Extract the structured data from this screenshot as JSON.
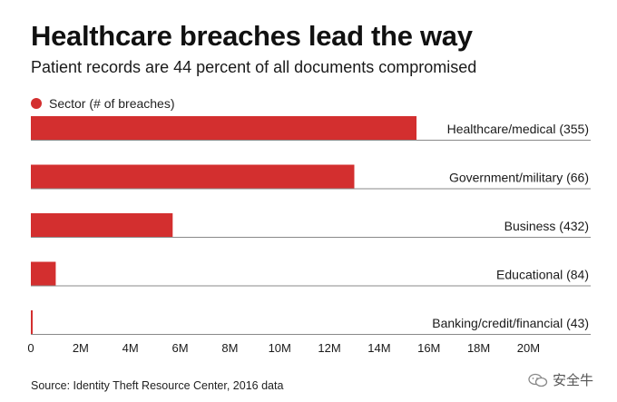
{
  "header": {
    "title": "Healthcare breaches lead the way",
    "subtitle": "Patient records are 44 percent of all documents compromised"
  },
  "legend": {
    "label": "Sector (# of breaches)",
    "color": "#d32f2f"
  },
  "chart_data": {
    "type": "bar",
    "orientation": "horizontal",
    "categories": [
      "Healthcare/medical (355)",
      "Government/military (66)",
      "Business (432)",
      "Educational (84)",
      "Banking/credit/financial (43)"
    ],
    "series": [
      {
        "name": "Sector (# of breaches)",
        "values": [
          15500000,
          13000000,
          5700000,
          1000000,
          60000
        ],
        "color": "#d32f2f"
      }
    ],
    "xlim": [
      0,
      22500000
    ],
    "xticks": [
      0,
      2000000,
      4000000,
      6000000,
      8000000,
      10000000,
      12000000,
      14000000,
      16000000,
      18000000,
      20000000
    ],
    "xtick_labels": [
      "0",
      "2M",
      "4M",
      "6M",
      "8M",
      "10M",
      "12M",
      "14M",
      "16M",
      "18M",
      "20M"
    ],
    "grid": false,
    "legend_position": "top-left"
  },
  "footer": {
    "source": "Source: Identity Theft Resource Center, 2016 data",
    "watermark": "安全牛"
  }
}
